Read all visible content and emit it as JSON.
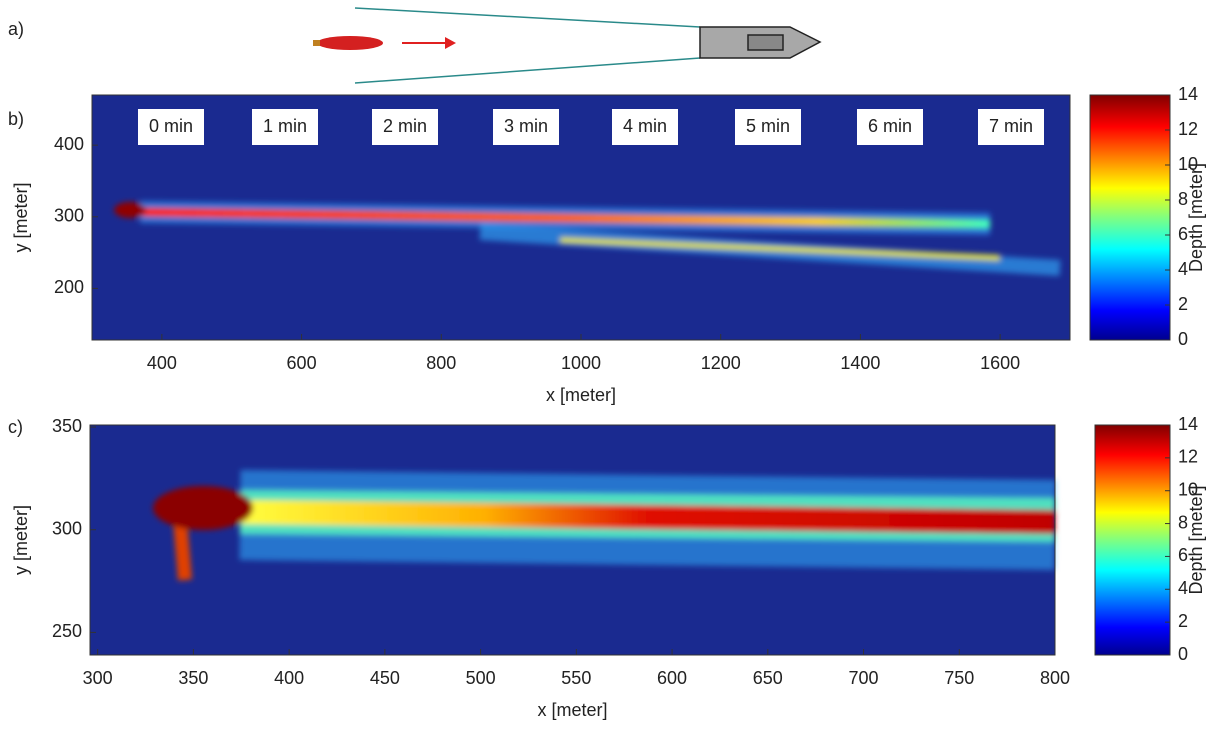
{
  "panel_labels": [
    "a)",
    "b)",
    "c)"
  ],
  "chart_data": [
    {
      "type": "heatmap",
      "xlabel": "x [meter]",
      "ylabel": "y [meter]",
      "xlim": [
        300,
        1700
      ],
      "ylim": [
        128,
        470
      ],
      "xticks": [
        400,
        600,
        800,
        1000,
        1200,
        1400,
        1600
      ],
      "yticks": [
        200,
        300,
        400
      ],
      "annotations": [
        "0 min",
        "1 min",
        "2 min",
        "3 min",
        "4 min",
        "5 min",
        "6 min",
        "7 min"
      ],
      "colorbar": {
        "label": "Depth [meter]",
        "lim": [
          0,
          14
        ],
        "ticks": [
          0,
          2,
          4,
          6,
          8,
          10,
          12,
          14
        ]
      }
    },
    {
      "type": "heatmap",
      "xlabel": "x [meter]",
      "ylabel": "y [meter]",
      "xlim": [
        296,
        800
      ],
      "ylim": [
        239,
        351
      ],
      "xticks": [
        300,
        350,
        400,
        450,
        500,
        550,
        600,
        650,
        700,
        750,
        800
      ],
      "yticks": [
        250,
        300,
        350
      ],
      "colorbar": {
        "label": "Depth [meter]",
        "lim": [
          0,
          14
        ],
        "ticks": [
          0,
          2,
          4,
          6,
          8,
          10,
          12,
          14
        ]
      }
    }
  ]
}
